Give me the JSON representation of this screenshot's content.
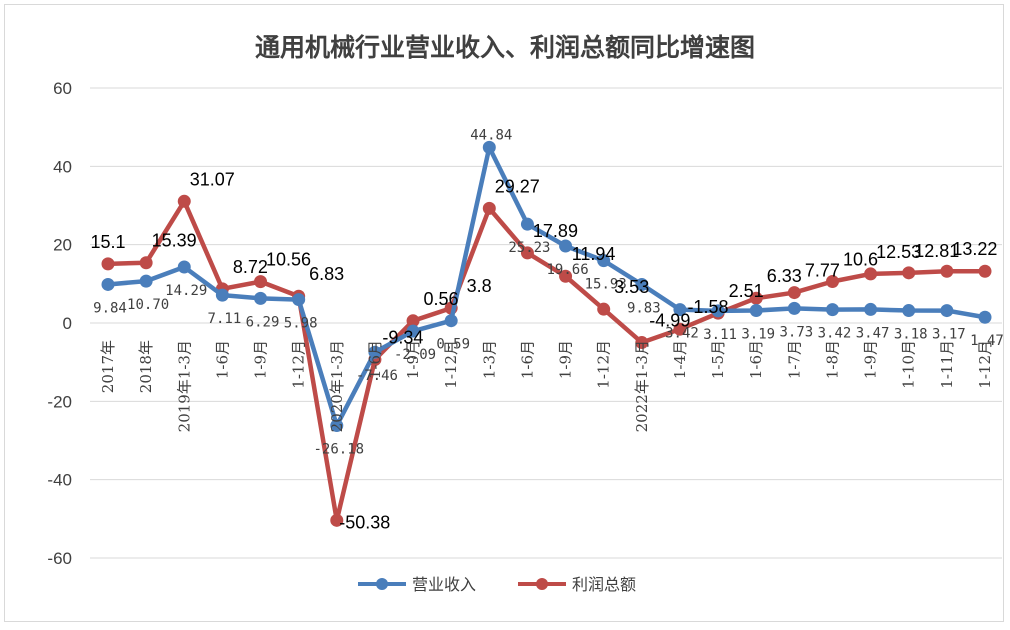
{
  "chart_data": {
    "type": "line",
    "title": "通用机械行业营业收入、利润总额同比增速图",
    "categories": [
      "2017年",
      "2018年",
      "2019年1-3月",
      "1-6月",
      "1-9月",
      "1-12月",
      "2020年1-3月",
      "1-6月",
      "1-9月",
      "1-12月",
      "1-3月",
      "1-6月",
      "1-9月",
      "1-12月",
      "2022年1-3月",
      "1-4月",
      "1-5月",
      "1-6月",
      "1-7月",
      "1-8月",
      "1-9月",
      "1-10月",
      "1-11月",
      "1-12月"
    ],
    "ylim": [
      -60,
      60
    ],
    "yticks": [
      60,
      40,
      20,
      0,
      -20,
      -40,
      -60
    ],
    "grid": true,
    "legend_position": "bottom",
    "series": [
      {
        "name": "营业收入",
        "color": "#4a7ebb",
        "values": [
          9.84,
          10.7,
          14.29,
          7.11,
          6.29,
          5.98,
          -26.18,
          -7.46,
          -2.09,
          0.59,
          44.84,
          25.23,
          19.66,
          15.93,
          9.83,
          3.42,
          3.11,
          3.19,
          3.73,
          3.42,
          3.47,
          3.18,
          3.17,
          1.47
        ],
        "labels": [
          "9.84",
          "10.70",
          "14.29",
          "7.11",
          "6.29",
          "5.98",
          "-26.18",
          "-7.46",
          "-2.09",
          "0.59",
          "44.84",
          "25.23",
          "19.66",
          "15.93",
          "9.83",
          "3.42",
          "3.11",
          "3.19",
          "3.73",
          "3.42",
          "3.47",
          "3.18",
          "3.17",
          "1.47"
        ]
      },
      {
        "name": "利润总额",
        "color": "#be4b48",
        "values": [
          15.1,
          15.39,
          31.07,
          8.72,
          10.56,
          6.83,
          -50.38,
          -9.34,
          0.56,
          3.8,
          29.27,
          17.89,
          11.94,
          3.53,
          -4.99,
          -1.58,
          2.51,
          6.33,
          7.77,
          10.6,
          12.53,
          12.81,
          13.22,
          13.22
        ],
        "labels": [
          "15.1",
          "15.39",
          "31.07",
          "8.72",
          "10.56",
          "6.83",
          "-50.38",
          "-9.34",
          "0.56",
          "3.8",
          "29.27",
          "17.89",
          "11.94",
          "3.53",
          "-4.99",
          "-1.58",
          "2.51",
          "6.33",
          "7.77",
          "10.6",
          "12.53",
          "12.81",
          "13.22",
          ""
        ]
      }
    ]
  }
}
